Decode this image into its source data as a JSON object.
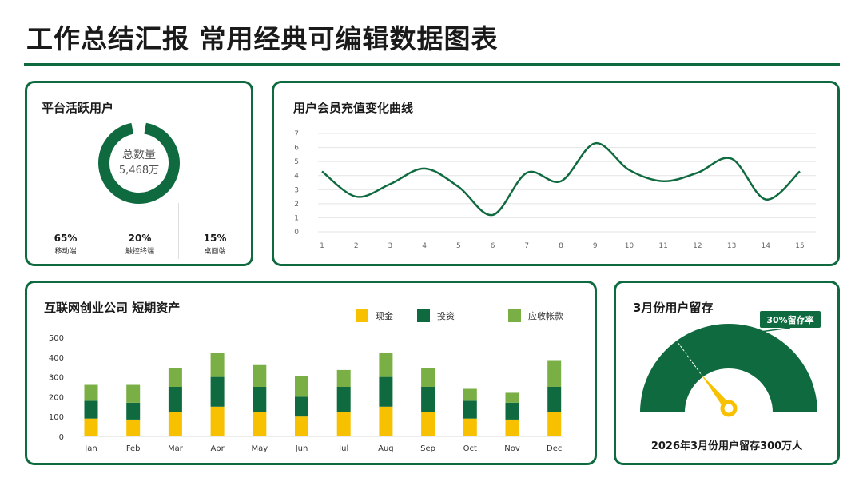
{
  "page_title": "工作总结汇报 常用经典可编辑数据图表",
  "colors": {
    "dark_green": "#0f6b3f",
    "yellow": "#f8c100",
    "light_green": "#7aaf46",
    "grid": "#e4e4e4"
  },
  "active_users": {
    "title": "平台活跃用户",
    "center_label": "总数量",
    "center_value": "5,468万",
    "stats": [
      {
        "value": "65%",
        "label": "移动端"
      },
      {
        "value": "20%",
        "label": "触控终端"
      },
      {
        "value": "15%",
        "label": "桌面端"
      }
    ]
  },
  "member_recharge": {
    "title": "用户会员充值变化曲线",
    "chart_data": {
      "type": "line",
      "x": [
        1,
        2,
        3,
        4,
        5,
        6,
        7,
        8,
        9,
        10,
        11,
        12,
        13,
        14,
        15
      ],
      "series": [
        {
          "values": [
            4.3,
            2.5,
            3.4,
            4.5,
            3.2,
            1.2,
            4.2,
            3.6,
            6.3,
            4.4,
            3.6,
            4.2,
            5.2,
            2.3,
            4.3
          ]
        }
      ],
      "ylim": [
        0,
        7
      ],
      "yticks": [
        0,
        1,
        2,
        3,
        4,
        5,
        6,
        7
      ],
      "grid": true
    }
  },
  "assets": {
    "title": "互联网创业公司  短期资产",
    "chart_data": {
      "type": "bar",
      "stacked": true,
      "categories": [
        "Jan",
        "Feb",
        "Mar",
        "Apr",
        "May",
        "Jun",
        "Jul",
        "Aug",
        "Sep",
        "Oct",
        "Nov",
        "Dec"
      ],
      "series": [
        {
          "name": "现金",
          "values": [
            90,
            85,
            125,
            150,
            125,
            100,
            125,
            150,
            125,
            90,
            85,
            125
          ]
        },
        {
          "name": "投资",
          "values": [
            90,
            85,
            125,
            150,
            125,
            100,
            125,
            150,
            125,
            90,
            85,
            125
          ]
        },
        {
          "name": "应收帐款",
          "values": [
            80,
            90,
            95,
            120,
            110,
            105,
            85,
            120,
            95,
            60,
            50,
            135
          ]
        }
      ],
      "ylim": [
        0,
        500
      ],
      "yticks": [
        0,
        100,
        200,
        300,
        400,
        500
      ],
      "legend_position": "top-right"
    }
  },
  "retention": {
    "title": "3月份用户留存",
    "badge": "30%留存率",
    "gauge_value_percent": 30,
    "caption": "2026年3月份用户留存300万人"
  }
}
